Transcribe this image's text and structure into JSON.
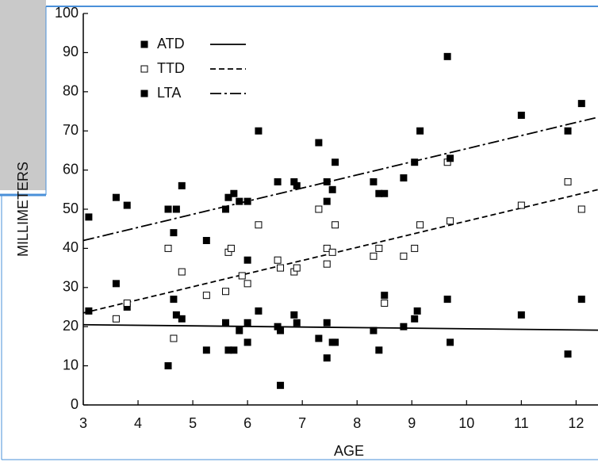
{
  "chart_data": {
    "type": "scatter",
    "x_label": "AGE",
    "y_label": "MILLIMETERS",
    "xlim": [
      3,
      12.4
    ],
    "ylim": [
      0,
      100
    ],
    "xticks": [
      3,
      4,
      5,
      6,
      7,
      8,
      9,
      10,
      11,
      12
    ],
    "yticks": [
      0,
      10,
      20,
      30,
      40,
      50,
      60,
      70,
      80,
      90,
      100
    ],
    "legend": "upper left",
    "series": [
      {
        "name": "ATD",
        "color": "#000000",
        "marker": "filled",
        "line_style": "solid",
        "x": [
          3.1,
          3.6,
          3.8,
          4.55,
          4.65,
          4.7,
          4.8,
          5.25,
          5.6,
          5.65,
          5.75,
          5.85,
          6,
          6,
          6.2,
          6.55,
          6.6,
          6.6,
          6.85,
          6.9,
          7.3,
          7.45,
          7.45,
          7.55,
          7.6,
          8.3,
          8.4,
          8.5,
          8.85,
          9.05,
          9.1,
          9.65,
          9.7,
          11,
          11.85,
          12.1
        ],
        "values": [
          24,
          31,
          25,
          10,
          27,
          23,
          22,
          14,
          21,
          14,
          14,
          19,
          16,
          21,
          24,
          20,
          19,
          5,
          23,
          21,
          17,
          21,
          12,
          16,
          16,
          19,
          14,
          28,
          20,
          22,
          24,
          27,
          16,
          23,
          13,
          27
        ],
        "trend_x": [
          3,
          12.4
        ],
        "trend_values": [
          20.5,
          19.1
        ]
      },
      {
        "name": "TTD",
        "color": "#000000",
        "marker": "open",
        "line_style": "dashed",
        "x": [
          3.6,
          3.8,
          4.55,
          4.65,
          4.8,
          5.25,
          5.6,
          5.65,
          5.7,
          5.9,
          6,
          6.2,
          6.55,
          6.6,
          6.85,
          6.9,
          7.3,
          7.45,
          7.45,
          7.55,
          7.6,
          8.3,
          8.4,
          8.5,
          8.85,
          9.05,
          9.15,
          9.65,
          9.7,
          11,
          11.85,
          12.1
        ],
        "values": [
          22,
          26,
          40,
          17,
          34,
          28,
          29,
          39,
          40,
          33,
          31,
          46,
          37,
          35,
          34,
          35,
          50,
          40,
          36,
          39,
          46,
          38,
          40,
          26,
          38,
          40,
          46,
          62,
          47,
          51,
          57,
          50
        ],
        "trend_x": [
          3,
          12.4
        ],
        "trend_values": [
          23.5,
          55
        ]
      },
      {
        "name": "LTA",
        "color": "#000000",
        "marker": "filled",
        "line_style": "dashdot",
        "x": [
          3.1,
          3.6,
          3.8,
          4.55,
          4.65,
          4.7,
          4.8,
          5.25,
          5.6,
          5.65,
          5.75,
          5.85,
          6,
          6,
          6.2,
          6.55,
          6.85,
          6.9,
          7.3,
          7.45,
          7.45,
          7.55,
          7.6,
          8.3,
          8.4,
          8.5,
          8.85,
          9.05,
          9.15,
          9.65,
          9.7,
          11,
          11.85,
          12.1
        ],
        "values": [
          48,
          53,
          51,
          50,
          44,
          50,
          56,
          42,
          50,
          53,
          54,
          52,
          37,
          52,
          70,
          57,
          57,
          56,
          67,
          57,
          52,
          55,
          62,
          57,
          54,
          54,
          58,
          62,
          70,
          89,
          63,
          74,
          70,
          77
        ],
        "trend_x": [
          3,
          12.4
        ],
        "trend_values": [
          42,
          73.5
        ]
      }
    ]
  }
}
